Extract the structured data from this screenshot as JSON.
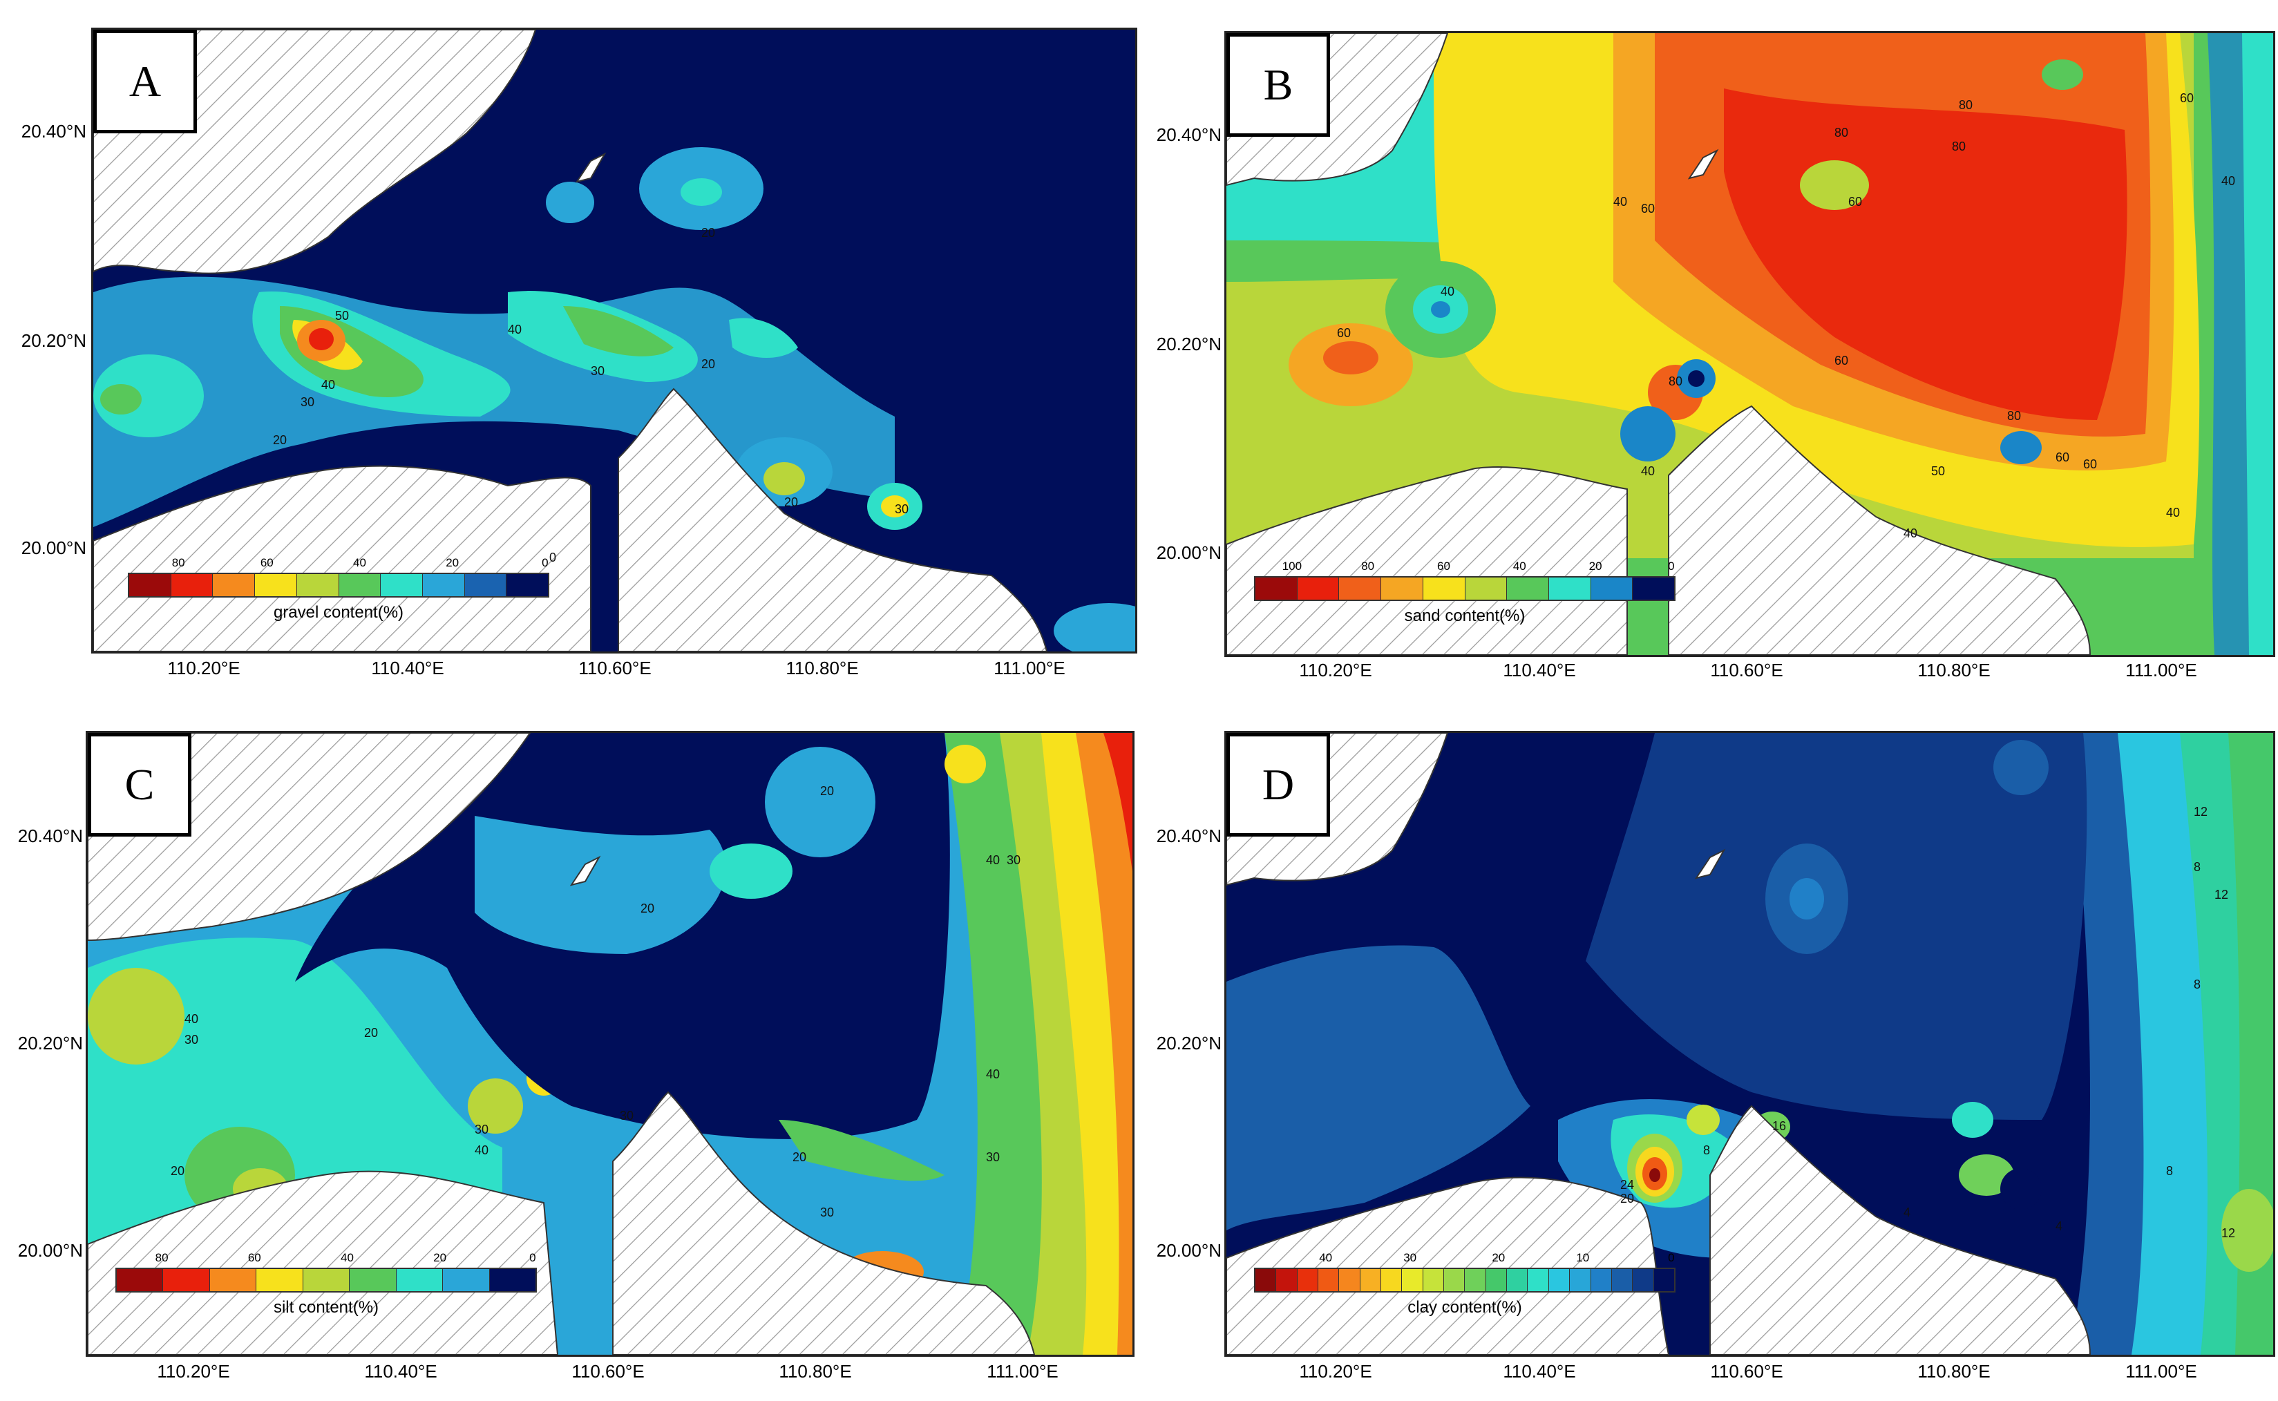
{
  "panels": [
    {
      "id": "A",
      "label": "A",
      "legend_title": "gravel content(%)",
      "legend_ticks": [
        "80",
        "60",
        "40",
        "20",
        "0"
      ],
      "legend_colors": [
        "#9b0a0a",
        "#e8200c",
        "#f58a1e",
        "#f7e11c",
        "#b9d63a",
        "#58c85a",
        "#2fe0c8",
        "#2aa6d8",
        "#1a63b0",
        "#000e5a"
      ],
      "lat_ticks": [
        "20.40°N",
        "20.20°N",
        "20.00°N"
      ],
      "lon_ticks": [
        "110.20°E",
        "110.40°E",
        "110.60°E",
        "110.80°E",
        "111.00°E"
      ],
      "contour_labels": [
        "50",
        "40",
        "30",
        "20",
        "40",
        "30",
        "20",
        "20",
        "30",
        "20",
        "0"
      ]
    },
    {
      "id": "B",
      "label": "B",
      "legend_title": "sand content(%)",
      "legend_ticks": [
        "100",
        "80",
        "60",
        "40",
        "20",
        "0"
      ],
      "legend_colors": [
        "#9b0a0a",
        "#e8200c",
        "#f0601a",
        "#f5a623",
        "#f7e11c",
        "#b9d63a",
        "#58c85a",
        "#2fe0c8",
        "#1a86c8",
        "#000e5a"
      ],
      "lat_ticks": [
        "20.40°N",
        "20.20°N",
        "20.00°N"
      ],
      "lon_ticks": [
        "110.20°E",
        "110.40°E",
        "110.60°E",
        "110.80°E",
        "111.00°E"
      ],
      "contour_labels": [
        "80",
        "60",
        "80",
        "60",
        "80",
        "60",
        "40",
        "60",
        "40",
        "80",
        "60",
        "50",
        "40",
        "60",
        "80",
        "40",
        "60",
        "40",
        "40"
      ]
    },
    {
      "id": "C",
      "label": "C",
      "legend_title": "silt content(%)",
      "legend_ticks": [
        "80",
        "60",
        "40",
        "20",
        "0"
      ],
      "legend_colors": [
        "#9b0a0a",
        "#e8200c",
        "#f58a1e",
        "#f7e11c",
        "#b9d63a",
        "#58c85a",
        "#2fe0c8",
        "#2aa6d8",
        "#000e5a"
      ],
      "lat_ticks": [
        "20.40°N",
        "20.20°N",
        "20.00°N"
      ],
      "lon_ticks": [
        "110.20°E",
        "110.40°E",
        "110.60°E",
        "110.80°E",
        "111.00°E"
      ],
      "contour_labels": [
        "20",
        "40",
        "30",
        "20",
        "30",
        "40",
        "30",
        "20",
        "40",
        "30",
        "20",
        "40",
        "30",
        "30",
        "20"
      ]
    },
    {
      "id": "D",
      "label": "D",
      "legend_title": "clay content(%)",
      "legend_ticks": [
        "40",
        "30",
        "20",
        "10",
        "0"
      ],
      "legend_colors": [
        "#8a0a0a",
        "#c4140c",
        "#e8300c",
        "#f05a14",
        "#f5861e",
        "#f7b023",
        "#f7d81f",
        "#e8ea2a",
        "#c6e33a",
        "#9ad84a",
        "#6fd05a",
        "#45c86a",
        "#2fd0a0",
        "#2fe0c8",
        "#2ac6e0",
        "#28a6d8",
        "#2080c8",
        "#1a5ea8",
        "#0f3a88",
        "#000e5a"
      ],
      "lat_ticks": [
        "20.40°N",
        "20.20°N",
        "20.00°N"
      ],
      "lon_ticks": [
        "110.20°E",
        "110.40°E",
        "110.60°E",
        "110.80°E",
        "111.00°E"
      ],
      "contour_labels": [
        "12",
        "8",
        "4",
        "12",
        "8",
        "16",
        "20",
        "24",
        "8",
        "4",
        "12",
        "8"
      ]
    }
  ]
}
